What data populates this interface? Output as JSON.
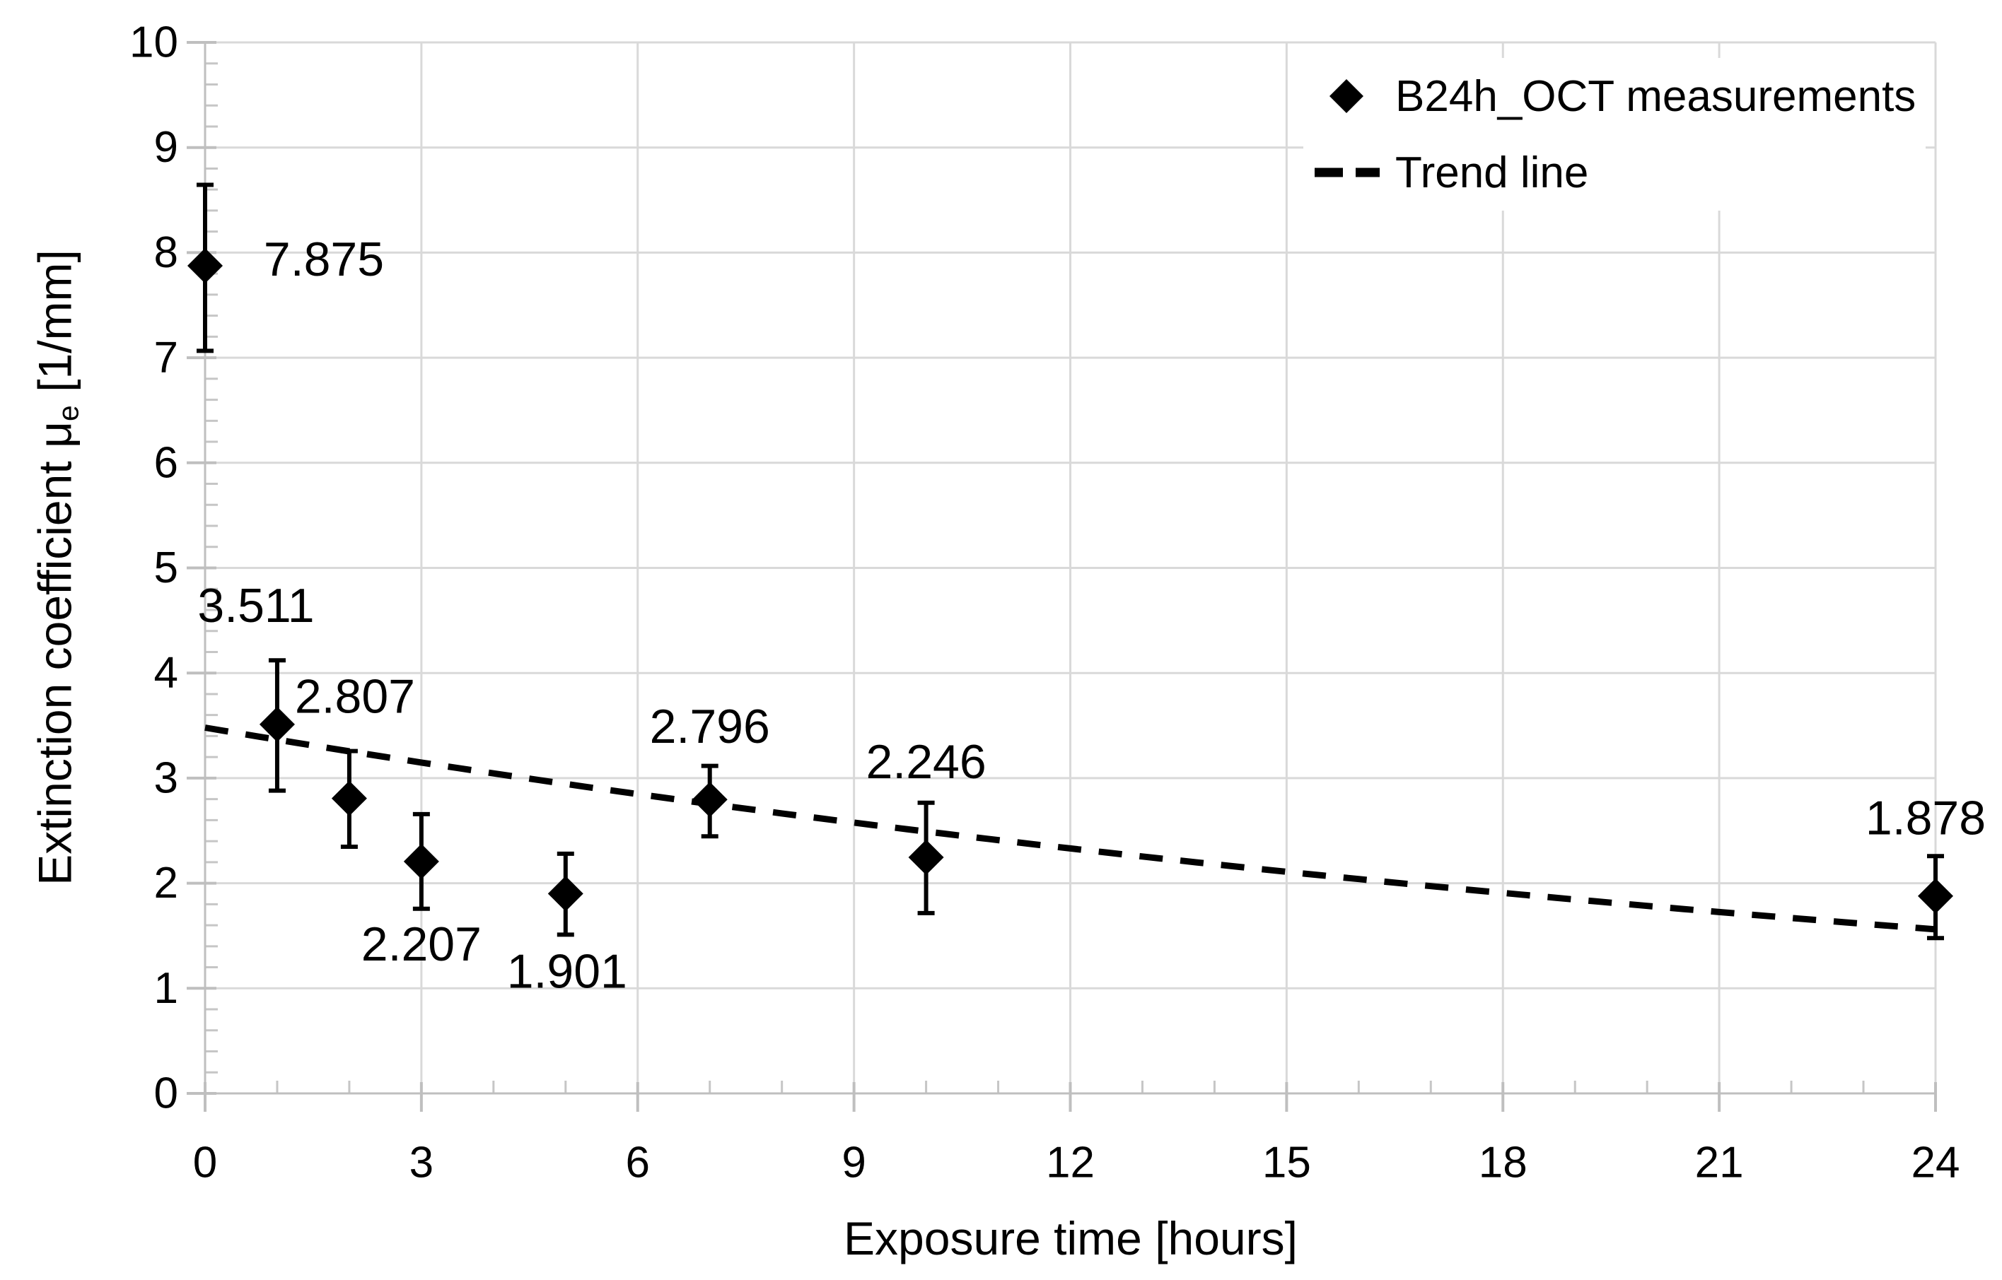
{
  "chart_data": {
    "type": "scatter",
    "title": "",
    "xlabel": "Exposure time [hours]",
    "ylabel_prefix": "Extinction coefficient μ",
    "ylabel_sub": "e",
    "ylabel_suffix": " [1/mm]",
    "xlim": [
      0,
      24
    ],
    "ylim": [
      0,
      10
    ],
    "x_ticks": [
      0,
      3,
      6,
      9,
      12,
      15,
      18,
      21,
      24
    ],
    "y_ticks": [
      0,
      1,
      2,
      3,
      4,
      5,
      6,
      7,
      8,
      9,
      10
    ],
    "x_minor_step": 1,
    "y_minor_step": 0.2,
    "grid": true,
    "legend_position": "top-right-inside",
    "series": [
      {
        "name": "B24h_OCT measurements",
        "marker": "diamond",
        "points": [
          {
            "x": 0,
            "y": 7.875,
            "label": "7.875",
            "err_up": 0.77,
            "err_down": 0.81,
            "label_dx": 168,
            "label_dy": -9
          },
          {
            "x": 1,
            "y": 3.511,
            "label": "3.511",
            "err_up": 0.61,
            "err_down": 0.63,
            "label_dx": -30,
            "label_dy": -168
          },
          {
            "x": 2,
            "y": 2.807,
            "label": "2.807",
            "err_up": 0.45,
            "err_down": 0.46,
            "label_dx": 8,
            "label_dy": -144
          },
          {
            "x": 3,
            "y": 2.207,
            "label": "2.207",
            "err_up": 0.45,
            "err_down": 0.45,
            "label_dx": 0,
            "label_dy": 117
          },
          {
            "x": 5,
            "y": 1.901,
            "label": "1.901",
            "err_up": 0.38,
            "err_down": 0.39,
            "label_dx": 2,
            "label_dy": 110
          },
          {
            "x": 7,
            "y": 2.796,
            "label": "2.796",
            "err_up": 0.32,
            "err_down": 0.35,
            "label_dx": 0,
            "label_dy": -103
          },
          {
            "x": 10,
            "y": 2.246,
            "label": "2.246",
            "err_up": 0.52,
            "err_down": 0.53,
            "label_dx": 0,
            "label_dy": -135
          },
          {
            "x": 24,
            "y": 1.878,
            "label": "1.878",
            "err_up": 0.38,
            "err_down": 0.4,
            "label_dx": -14,
            "label_dy": -110
          }
        ]
      }
    ],
    "trend": {
      "name": "Trend line",
      "type": "exponential",
      "a": 3.48,
      "b": -0.0334,
      "x_start": 0,
      "x_end": 24
    },
    "legend": [
      {
        "label": "B24h_OCT measurements",
        "marker": "diamond"
      },
      {
        "label": "Trend line",
        "marker": "dashed-line"
      }
    ],
    "colors": {
      "ink": "#000000",
      "gridline": "#d9d9d9",
      "axis": "#bfbfbf",
      "minor_tick": "#c6c6c6",
      "background": "#ffffff"
    }
  }
}
